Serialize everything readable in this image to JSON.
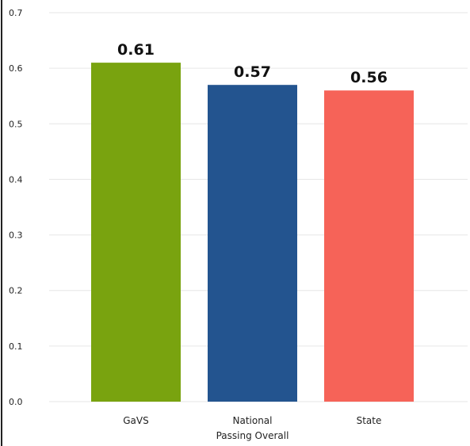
{
  "chart_data": {
    "type": "bar",
    "categories": [
      "GaVS",
      "National\nPassing Overall",
      "State"
    ],
    "values": [
      0.61,
      0.57,
      0.56
    ],
    "data_labels": [
      "0.61",
      "0.57",
      "0.56"
    ],
    "colors": [
      "#79a30f",
      "#23548f",
      "#f66358"
    ],
    "y_ticks": [
      "0.0",
      "0.1",
      "0.2",
      "0.3",
      "0.4",
      "0.5",
      "0.6",
      "0.7"
    ],
    "ylim": [
      0,
      0.7
    ],
    "grid": true,
    "legend": "none",
    "title": "",
    "xlabel": "",
    "ylabel": ""
  }
}
